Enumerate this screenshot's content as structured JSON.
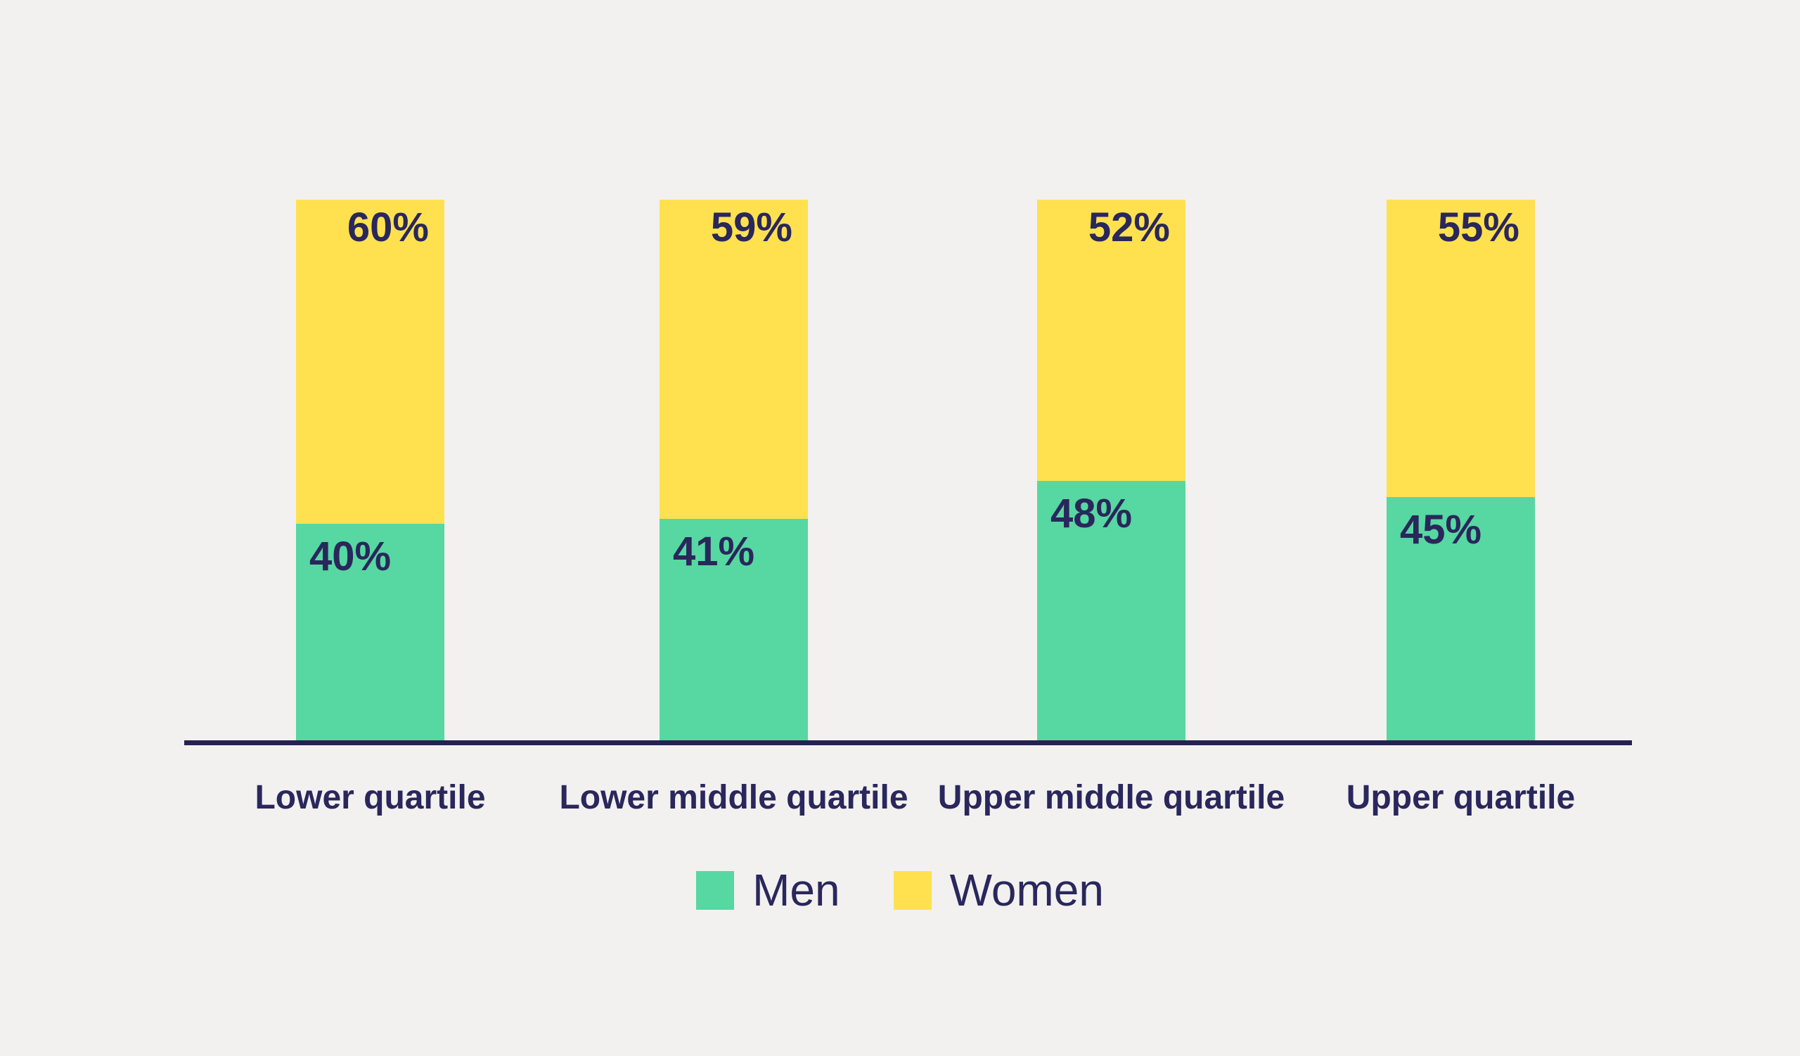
{
  "background_color": "#F2F1EF",
  "text_color": "#29275C",
  "axis_color": "#232250",
  "chart_data": {
    "type": "bar",
    "variant": "stacked-100-percent-column",
    "categories": [
      "Lower quartile",
      "Lower middle quartile",
      "Upper middle quartile",
      "Upper quartile"
    ],
    "series": [
      {
        "name": "Men",
        "color": "#57D7A1",
        "values": [
          40,
          41,
          48,
          45
        ]
      },
      {
        "name": "Women",
        "color": "#FFE14F",
        "values": [
          60,
          59,
          52,
          55
        ]
      }
    ],
    "value_suffix": "%",
    "ylim": [
      0,
      100
    ],
    "grid": false,
    "legend_position": "bottom",
    "data_label_placement": {
      "men": "top-left-of-segment",
      "women": "top-right-of-segment"
    }
  }
}
